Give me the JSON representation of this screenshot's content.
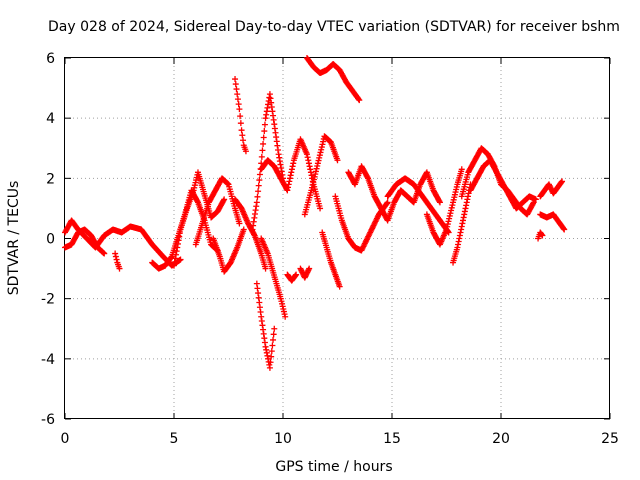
{
  "chart_data": {
    "type": "scatter",
    "title": "Day 028 of 2024, Sidereal Day-to-day VTEC variation (SDTVAR) for receiver bshm",
    "xlabel": "GPS time / hours",
    "ylabel": "SDTVAR / TECUs",
    "xlim": [
      0,
      25
    ],
    "ylim": [
      -6,
      6
    ],
    "xticks": [
      0,
      5,
      10,
      15,
      20,
      25
    ],
    "yticks": [
      -6,
      -4,
      -2,
      0,
      2,
      4,
      6
    ],
    "grid": true,
    "marker": "+",
    "series_color": "#ff0000",
    "series": [
      {
        "name": "s1",
        "x": [
          0.0,
          0.3,
          0.6,
          1.0,
          1.4,
          1.8,
          2.2,
          2.6,
          3.0,
          3.5,
          4.0,
          4.5,
          4.9,
          5.3
        ],
        "y": [
          0.2,
          0.6,
          0.3,
          0.0,
          -0.3,
          0.1,
          0.3,
          0.2,
          0.4,
          0.3,
          -0.2,
          -0.6,
          -0.9,
          -0.7
        ]
      },
      {
        "name": "s2",
        "x": [
          0.0,
          0.3,
          0.6,
          0.9,
          1.2,
          1.5,
          1.8
        ],
        "y": [
          -0.3,
          -0.2,
          0.2,
          0.3,
          0.1,
          -0.3,
          -0.5
        ]
      },
      {
        "name": "s3",
        "x": [
          2.3,
          2.4,
          2.5
        ],
        "y": [
          -0.5,
          -0.8,
          -1.0
        ]
      },
      {
        "name": "s4",
        "x": [
          4.0,
          4.3,
          4.6,
          4.9,
          5.2,
          5.5,
          5.8,
          6.1,
          6.4,
          6.7,
          7.0
        ],
        "y": [
          -0.8,
          -1.0,
          -0.9,
          -0.6,
          0.1,
          0.8,
          1.6,
          1.2,
          0.6,
          -0.2,
          -0.4
        ]
      },
      {
        "name": "s5",
        "x": [
          5.0,
          5.3,
          5.6,
          5.9,
          6.1,
          6.3,
          6.5,
          6.7,
          7.0,
          7.3
        ],
        "y": [
          -0.9,
          0.3,
          1.0,
          1.6,
          2.2,
          1.7,
          1.2,
          0.7,
          0.9,
          1.3
        ]
      },
      {
        "name": "s6",
        "x": [
          6.0,
          6.3,
          6.6,
          6.9,
          7.2,
          7.5,
          7.8,
          8.0
        ],
        "y": [
          -0.2,
          0.5,
          1.2,
          1.6,
          2.0,
          1.8,
          1.0,
          0.5
        ]
      },
      {
        "name": "s7",
        "x": [
          6.8,
          7.1,
          7.3,
          7.6,
          7.9,
          8.2
        ],
        "y": [
          0.0,
          -0.6,
          -1.1,
          -0.8,
          -0.3,
          0.3
        ]
      },
      {
        "name": "s8",
        "x": [
          7.8,
          7.9,
          8.0,
          8.1,
          8.2,
          8.3
        ],
        "y": [
          5.3,
          4.8,
          4.3,
          3.6,
          3.1,
          2.9
        ]
      },
      {
        "name": "s9",
        "x": [
          7.8,
          8.1,
          8.4,
          8.7,
          9.0,
          9.2
        ],
        "y": [
          1.3,
          1.0,
          0.5,
          0.1,
          -0.5,
          -1.0
        ]
      },
      {
        "name": "s10",
        "x": [
          8.6,
          8.8,
          9.0,
          9.2,
          9.4,
          9.6,
          9.8,
          10.0
        ],
        "y": [
          0.3,
          1.2,
          2.5,
          4.0,
          4.8,
          3.8,
          2.8,
          2.0
        ]
      },
      {
        "name": "s11",
        "x": [
          8.8,
          9.0,
          9.2,
          9.4,
          9.6
        ],
        "y": [
          -1.5,
          -2.6,
          -3.6,
          -4.3,
          -3.0
        ]
      },
      {
        "name": "s12",
        "x": [
          9.0,
          9.3,
          9.5,
          9.7,
          9.9,
          10.1
        ],
        "y": [
          0.0,
          -0.5,
          -1.0,
          -1.5,
          -2.0,
          -2.6
        ]
      },
      {
        "name": "s13",
        "x": [
          9.0,
          9.3,
          9.6,
          9.9,
          10.2,
          10.5,
          10.8,
          11.1,
          11.4,
          11.7
        ],
        "y": [
          2.3,
          2.6,
          2.4,
          2.0,
          1.6,
          2.6,
          3.3,
          2.8,
          1.8,
          1.0
        ]
      },
      {
        "name": "s14",
        "x": [
          10.2,
          10.4,
          10.6
        ],
        "y": [
          -1.2,
          -1.4,
          -1.2
        ]
      },
      {
        "name": "s15",
        "x": [
          10.8,
          11.0,
          11.2
        ],
        "y": [
          -1.0,
          -1.3,
          -1.0
        ]
      },
      {
        "name": "s16",
        "x": [
          11.0,
          11.3,
          11.6,
          11.9,
          12.2,
          12.5
        ],
        "y": [
          0.8,
          1.6,
          2.5,
          3.4,
          3.2,
          2.6
        ]
      },
      {
        "name": "s17",
        "x": [
          11.1,
          11.4,
          11.7,
          12.0,
          12.3,
          12.6,
          12.9,
          13.2,
          13.5
        ],
        "y": [
          6.0,
          5.7,
          5.5,
          5.6,
          5.8,
          5.6,
          5.2,
          4.9,
          4.6
        ]
      },
      {
        "name": "s18",
        "x": [
          11.8,
          12.0,
          12.2,
          12.4,
          12.6
        ],
        "y": [
          0.2,
          -0.3,
          -0.8,
          -1.2,
          -1.6
        ]
      },
      {
        "name": "s19",
        "x": [
          12.4,
          12.7,
          13.0,
          13.3,
          13.6,
          14.0,
          14.4,
          14.8
        ],
        "y": [
          1.4,
          0.6,
          0.0,
          -0.3,
          -0.4,
          0.2,
          0.8,
          1.2
        ]
      },
      {
        "name": "s20",
        "x": [
          13.0,
          13.3,
          13.6,
          13.9,
          14.2,
          14.5,
          14.8,
          15.1,
          15.4,
          15.7,
          16.0,
          16.3,
          16.6,
          16.9,
          17.2
        ],
        "y": [
          2.2,
          1.8,
          2.4,
          2.0,
          1.4,
          1.0,
          0.6,
          1.2,
          1.6,
          1.4,
          1.2,
          1.8,
          2.2,
          1.6,
          1.2
        ]
      },
      {
        "name": "s21",
        "x": [
          14.8,
          15.2,
          15.6,
          16.0,
          16.4,
          16.8,
          17.2,
          17.6
        ],
        "y": [
          1.4,
          1.8,
          2.0,
          1.8,
          1.4,
          1.0,
          0.6,
          0.2
        ]
      },
      {
        "name": "s22",
        "x": [
          16.6,
          16.9,
          17.2,
          17.5,
          17.8,
          18.0,
          18.2
        ],
        "y": [
          0.8,
          0.2,
          -0.2,
          0.3,
          1.2,
          1.8,
          2.3
        ]
      },
      {
        "name": "s23",
        "x": [
          17.8,
          18.0,
          18.2,
          18.4,
          18.6
        ],
        "y": [
          -0.8,
          -0.3,
          0.4,
          1.1,
          1.8
        ]
      },
      {
        "name": "s24",
        "x": [
          18.2,
          18.5,
          18.8,
          19.1,
          19.4,
          19.7,
          20.0,
          20.3,
          20.6,
          20.9,
          21.2,
          21.5
        ],
        "y": [
          1.4,
          2.2,
          2.6,
          3.0,
          2.8,
          2.4,
          1.8,
          1.6,
          1.3,
          1.0,
          0.8,
          1.2
        ]
      },
      {
        "name": "s25",
        "x": [
          18.6,
          18.9,
          19.2,
          19.5,
          19.8,
          20.1,
          20.4,
          20.7,
          21.0,
          21.3,
          21.6
        ],
        "y": [
          1.6,
          2.0,
          2.4,
          2.6,
          2.2,
          1.8,
          1.4,
          1.0,
          1.2,
          1.4,
          1.3
        ]
      },
      {
        "name": "s26",
        "x": [
          21.7,
          21.8,
          21.9
        ],
        "y": [
          0.0,
          0.2,
          0.1
        ]
      },
      {
        "name": "s27",
        "x": [
          21.8,
          22.0,
          22.2,
          22.4,
          22.6,
          22.8
        ],
        "y": [
          1.4,
          1.6,
          1.8,
          1.5,
          1.7,
          1.9
        ]
      },
      {
        "name": "s28",
        "x": [
          21.8,
          22.1,
          22.4,
          22.7,
          22.9
        ],
        "y": [
          0.8,
          0.7,
          0.8,
          0.5,
          0.3
        ]
      }
    ]
  }
}
